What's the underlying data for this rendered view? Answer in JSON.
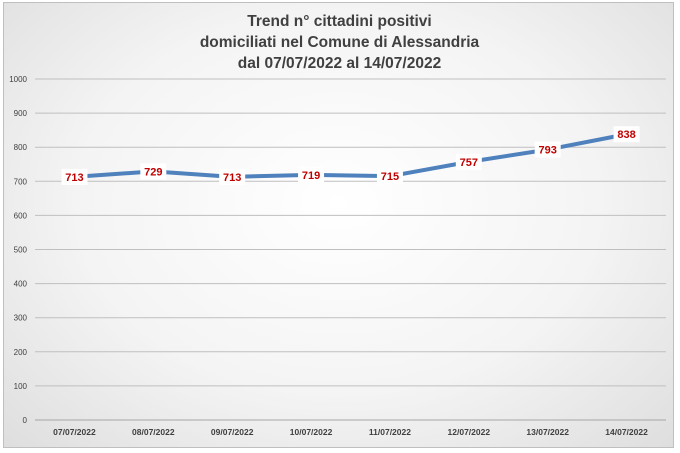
{
  "chart_data": {
    "type": "line",
    "title": [
      "Trend n° cittadini positivi",
      "domiciliati nel Comune di Alessandria",
      "dal 07/07/2022 al 14/07/2022"
    ],
    "categories": [
      "07/07/2022",
      "08/07/2022",
      "09/07/2022",
      "10/07/2022",
      "11/07/2022",
      "12/07/2022",
      "13/07/2022",
      "14/07/2022"
    ],
    "values": [
      713,
      729,
      713,
      719,
      715,
      757,
      793,
      838
    ],
    "ylim": [
      0,
      1000
    ],
    "yticks": [
      0,
      100,
      200,
      300,
      400,
      500,
      600,
      700,
      800,
      900,
      1000
    ],
    "grid": true,
    "legend": "none",
    "colors": {
      "line": "#4f81bd",
      "data_label": "#c00000",
      "grid": "#bfbfbf",
      "axis_text": "#404040"
    }
  }
}
